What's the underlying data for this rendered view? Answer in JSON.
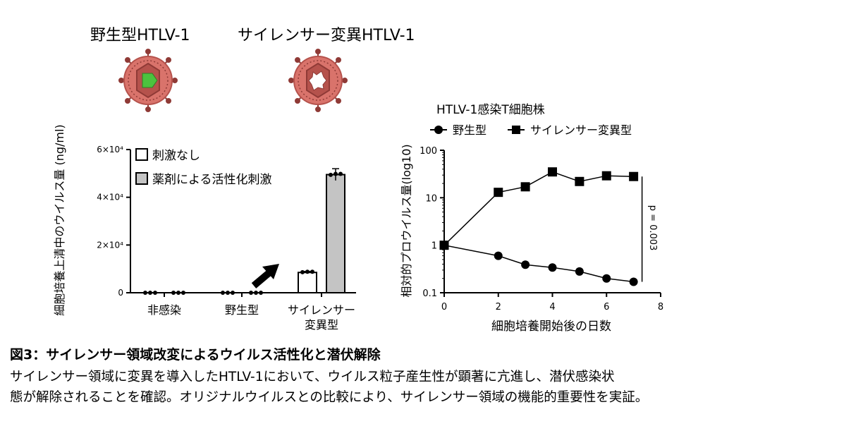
{
  "virus_labels": {
    "wild": "野生型HTLV-1",
    "mutant": "サイレンサー変異HTLV-1"
  },
  "colors": {
    "virus_body": "#d9736b",
    "virus_core": "#8f3a36",
    "green": "#4cc23e",
    "gray_bar": "#c4c4c4"
  },
  "chart_data": [
    {
      "type": "bar",
      "ylabel": "細胞培養上清中のウイルス量 (ng/ml)",
      "yticks": [
        "0",
        "2×10⁴",
        "4×10⁴",
        "6×10⁴"
      ],
      "ylim": [
        0,
        60000
      ],
      "categories": [
        {
          "label": [
            "非感染"
          ]
        },
        {
          "label": [
            "野生型"
          ]
        },
        {
          "label": [
            "サイレンサー",
            "変異型"
          ]
        }
      ],
      "series": [
        {
          "name": "刺激なし",
          "values": [
            0,
            0,
            8500
          ],
          "points": [
            [
              0,
              0,
              0
            ],
            [
              0,
              0,
              0
            ],
            [
              8000,
              9500,
              8800
            ]
          ]
        },
        {
          "name": "薬剤による活性化刺激",
          "values": [
            0,
            0,
            49500
          ],
          "points": [
            [
              0,
              0,
              0
            ],
            [
              0,
              0,
              0
            ],
            [
              48800,
              50500,
              49800
            ]
          ]
        }
      ]
    },
    {
      "type": "line",
      "title": "HTLV-1感染T細胞株",
      "xlabel": "細胞培養開始後の日数",
      "ylabel": "相対的プロウイルス量(log10)",
      "yscale": "log",
      "xlim": [
        0,
        8
      ],
      "ylim": [
        0.1,
        100
      ],
      "xticks": [
        "0",
        "2",
        "4",
        "6",
        "8"
      ],
      "yticks": [
        "0.1",
        "1",
        "10",
        "100"
      ],
      "annotation": "p = 0.003",
      "series": [
        {
          "name": "野生型",
          "marker": "circle",
          "x": [
            0,
            2,
            3,
            4,
            5,
            6,
            7
          ],
          "y": [
            1,
            0.6,
            0.39,
            0.34,
            0.28,
            0.2,
            0.17
          ]
        },
        {
          "name": "サイレンサー変異型",
          "marker": "square",
          "x": [
            0,
            2,
            3,
            4,
            5,
            6,
            7
          ],
          "y": [
            1,
            13,
            17,
            35,
            22,
            29,
            28
          ]
        }
      ]
    }
  ],
  "caption": {
    "title": "図3：サイレンサー領域改変によるウイルス活性化と潜伏解除",
    "line1": "サイレンサー領域に変異を導入したHTLV-1において、ウイルス粒子産生性が顕著に亢進し、潜伏感染状",
    "line2": "態が解除されることを確認。オリジナルウイルスとの比較により、サイレンサー領域の機能的重要性を実証。"
  }
}
